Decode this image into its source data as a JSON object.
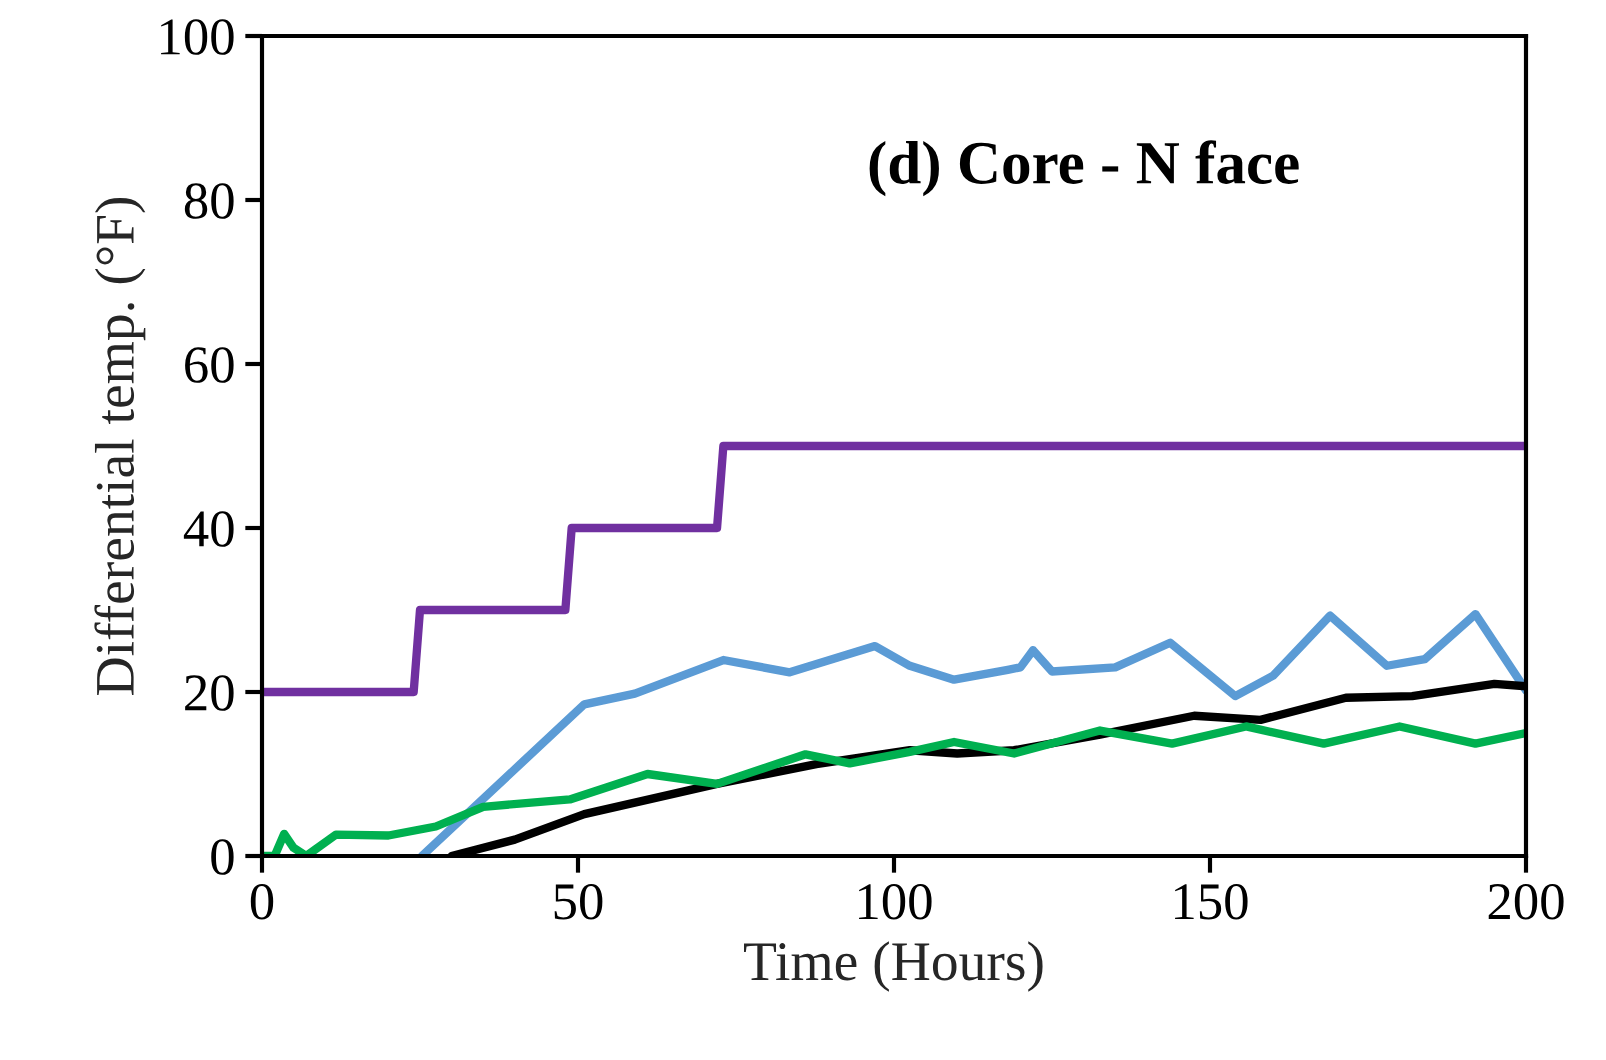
{
  "chart_data": {
    "type": "line",
    "title": "(d) Core - N face",
    "xlabel": "Time (Hours)",
    "ylabel": "Differential temp. (°F)",
    "xlim": [
      0,
      200
    ],
    "xticks": [
      0,
      50,
      100,
      150,
      200
    ],
    "ylim": [
      0,
      100
    ],
    "yticks": [
      0,
      20,
      40,
      60,
      80,
      100
    ],
    "grid": false,
    "series": [
      {
        "color": "#7030a0",
        "x": [
          0,
          24,
          25,
          48,
          49,
          72,
          73,
          200
        ],
        "values": [
          20,
          20,
          30,
          30,
          40,
          40,
          50,
          50
        ]
      },
      {
        "color": "#5b9bd5",
        "x": [
          25.3,
          51,
          59,
          73,
          83.5,
          97,
          102.5,
          109.5,
          118,
          120,
          122,
          125,
          135,
          143.7,
          154,
          160,
          169,
          178,
          184,
          192,
          200
        ],
        "values": [
          0,
          18.5,
          19.8,
          23.9,
          22.4,
          25.6,
          23.2,
          21.5,
          22.7,
          23,
          25.1,
          22.5,
          23,
          26,
          19.5,
          22,
          29.3,
          23.2,
          24,
          29.5,
          20.2
        ]
      },
      {
        "color": "#000000",
        "x": [
          30,
          40,
          51,
          72,
          87.7,
          102.5,
          110,
          119,
          132.6,
          147.5,
          158,
          171.5,
          182,
          195,
          200
        ],
        "values": [
          0,
          2,
          5.1,
          8.8,
          11.2,
          12.9,
          12.5,
          12.9,
          14.8,
          17.1,
          16.6,
          19.3,
          19.5,
          21,
          20.7
        ]
      },
      {
        "color": "#00b050",
        "x": [
          0,
          2,
          3.5,
          5,
          7,
          11.7,
          20,
          27.5,
          35,
          48.7,
          61,
          72,
          86,
          93,
          102.5,
          109.5,
          119,
          132.6,
          144,
          155.7,
          168,
          180,
          192,
          200
        ],
        "values": [
          0,
          0,
          2.7,
          1,
          0,
          2.6,
          2.5,
          3.6,
          6,
          6.9,
          10,
          8.8,
          12.4,
          11.3,
          12.7,
          13.9,
          12.5,
          15.3,
          13.7,
          15.8,
          13.7,
          15.8,
          13.7,
          15
        ]
      }
    ]
  }
}
